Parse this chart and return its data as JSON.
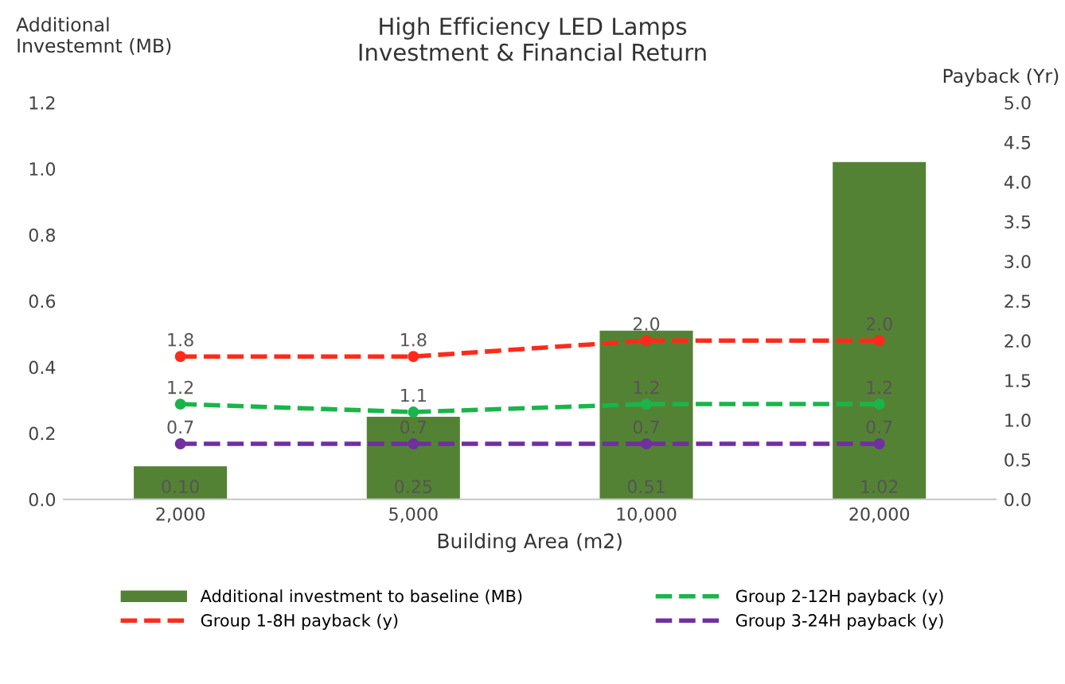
{
  "chart_data": {
    "type": "bar",
    "title": "High Efficiency LED Lamps\nInvestment & Financial Return",
    "xlabel": "Building Area (m2)",
    "ylabel": "Additional\nInvestemnt (MB)",
    "y2label": "Payback (Yr)",
    "categories": [
      "2,000",
      "5,000",
      "10,000",
      "20,000"
    ],
    "series": [
      {
        "name": "Additional investment to baseline (MB)",
        "color": "#548235",
        "values": [
          0.1,
          0.25,
          0.51,
          1.02
        ],
        "value_labels": [
          "0.10",
          "0.25",
          "0.51",
          "1.02"
        ]
      },
      {
        "name": "Group 1-8H payback (y)",
        "type": "line",
        "axis": "y2",
        "color": "#ff2a1a",
        "values": [
          1.8,
          1.8,
          2.0,
          2.0
        ],
        "value_labels": [
          "1.8",
          "1.8",
          "2.0",
          "2.0"
        ]
      },
      {
        "name": "Group 2-12H payback (y)",
        "type": "line",
        "axis": "y2",
        "color": "#1ab54a",
        "values": [
          1.2,
          1.1,
          1.2,
          1.2
        ],
        "value_labels": [
          "1.2",
          "1.1",
          "1.2",
          "1.2"
        ]
      },
      {
        "name": "Group 3-24H payback (y)",
        "type": "line",
        "axis": "y2",
        "color": "#7030a0",
        "values": [
          0.7,
          0.7,
          0.7,
          0.7
        ],
        "value_labels": [
          "0.7",
          "0.7",
          "0.7",
          "0.7"
        ]
      }
    ],
    "ylim": [
      0,
      1.2
    ],
    "yticks": [
      {
        "value": 0,
        "label": "0.0"
      },
      {
        "value": 0.2,
        "label": "0.2"
      },
      {
        "value": 0.4,
        "label": "0.4"
      },
      {
        "value": 0.6,
        "label": "0.6"
      },
      {
        "value": 0.8,
        "label": "0.8"
      },
      {
        "value": 1.0,
        "label": "1.0"
      },
      {
        "value": 1.2,
        "label": "1.2"
      }
    ],
    "y2lim": [
      0,
      5
    ],
    "y2ticks": [
      {
        "value": 0,
        "label": "0.0"
      },
      {
        "value": 0.5,
        "label": "0.5"
      },
      {
        "value": 1,
        "label": "1.0"
      },
      {
        "value": 1.5,
        "label": "1.5"
      },
      {
        "value": 2,
        "label": "2.0"
      },
      {
        "value": 2.5,
        "label": "2.5"
      },
      {
        "value": 3,
        "label": "3.0"
      },
      {
        "value": 3.5,
        "label": "3.5"
      },
      {
        "value": 4,
        "label": "4.0"
      },
      {
        "value": 4.5,
        "label": "4.5"
      },
      {
        "value": 5,
        "label": "5.0"
      }
    ],
    "marker": "circle",
    "line_style": "dashed",
    "grid": false,
    "legend": "bottom"
  }
}
